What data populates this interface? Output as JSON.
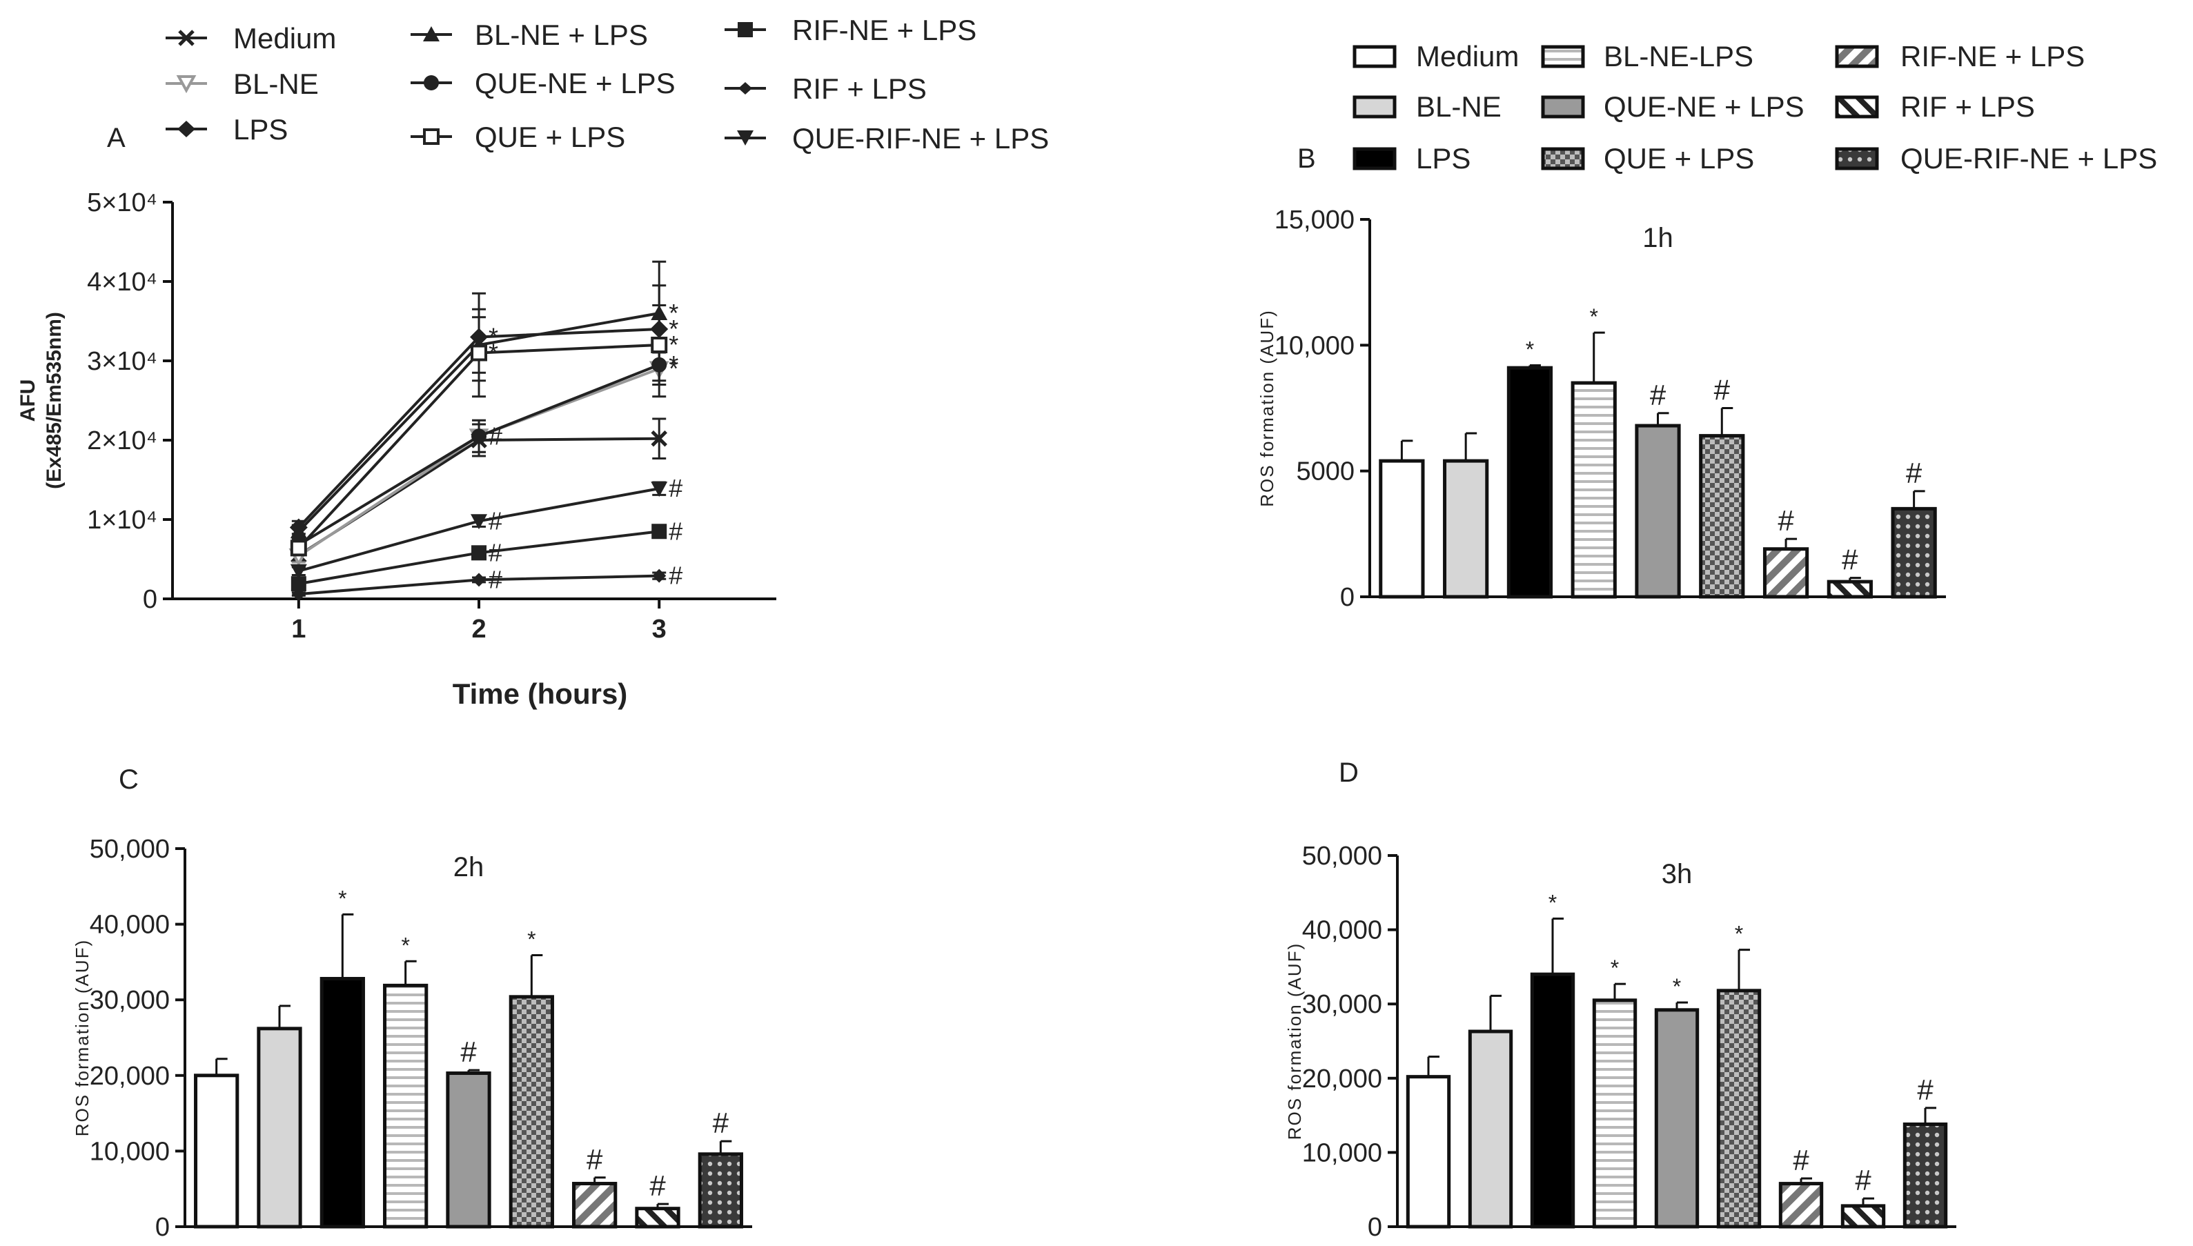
{
  "panels": {
    "a": "A",
    "b": "B",
    "c": "C",
    "d": "D"
  },
  "line_legend": {
    "medium": "Medium",
    "blne": "BL-NE",
    "lps": "LPS",
    "blne_lps": "BL-NE + LPS",
    "quene_lps": "QUE-NE + LPS",
    "que_lps": "QUE + LPS",
    "rifne_lps": "RIF-NE + LPS",
    "rif_lps": "RIF + LPS",
    "querifne_lps": "QUE-RIF-NE + LPS"
  },
  "bar_legend": {
    "medium": "Medium",
    "blne": "BL-NE",
    "lps": "LPS",
    "blnelps": "BL-NE-LPS",
    "quene_lps": "QUE-NE + LPS",
    "que_lps": "QUE + LPS",
    "rifne_lps": "RIF-NE + LPS",
    "rif_lps": "RIF + LPS",
    "querifne_lps": "QUE-RIF-NE + LPS"
  },
  "chart_data": [
    {
      "type": "line",
      "panel": "A",
      "title": "",
      "xlabel": "Time (hours)",
      "ylabel_line1": "AFU",
      "ylabel_line2": "(Ex485/Em535nm)",
      "x": [
        1,
        2,
        3
      ],
      "xlim": [
        0.3,
        3.65
      ],
      "ylim": [
        0,
        50000
      ],
      "x_ticks": [
        "1",
        "2",
        "3"
      ],
      "y_ticks": [
        {
          "v": 0,
          "label": "0"
        },
        {
          "v": 10000,
          "label": "1×10⁴"
        },
        {
          "v": 20000,
          "label": "2×10⁴"
        },
        {
          "v": 30000,
          "label": "3×10⁴"
        },
        {
          "v": 40000,
          "label": "4×10⁴"
        },
        {
          "v": 50000,
          "label": "5×10⁴"
        }
      ],
      "series": [
        {
          "name": "Medium",
          "marker": "x",
          "values": [
            5500,
            20000,
            20200
          ],
          "err": [
            700,
            2000,
            2500
          ],
          "marks": [
            "",
            "",
            ""
          ]
        },
        {
          "name": "BL-NE",
          "marker": "tri-down-open",
          "values": [
            5400,
            20500,
            29000
          ],
          "err": [
            800,
            2000,
            2000
          ],
          "marks": [
            "",
            "#",
            "*"
          ]
        },
        {
          "name": "LPS",
          "marker": "diamond",
          "values": [
            9000,
            33000,
            34000
          ],
          "err": [
            800,
            5500,
            8500
          ],
          "marks": [
            "",
            "*",
            "*"
          ]
        },
        {
          "name": "BL-NE + LPS",
          "marker": "tri-up",
          "values": [
            8500,
            32000,
            36000
          ],
          "err": [
            800,
            3500,
            3500
          ],
          "marks": [
            "",
            "",
            "*"
          ]
        },
        {
          "name": "QUE-NE + LPS",
          "marker": "circle",
          "values": [
            6800,
            20500,
            29500
          ],
          "err": [
            700,
            2000,
            2000
          ],
          "marks": [
            "",
            "",
            "*"
          ]
        },
        {
          "name": "QUE + LPS",
          "marker": "square-open",
          "values": [
            6400,
            31000,
            32000
          ],
          "err": [
            700,
            5500,
            5000
          ],
          "marks": [
            "",
            "*",
            "*"
          ]
        },
        {
          "name": "RIF-NE + LPS",
          "marker": "square",
          "values": [
            1900,
            5800,
            8500
          ],
          "err": [
            400,
            600,
            600
          ],
          "marks": [
            "",
            "#",
            "#"
          ]
        },
        {
          "name": "RIF + LPS",
          "marker": "diamond-small",
          "values": [
            600,
            2400,
            2900
          ],
          "err": [
            200,
            300,
            400
          ],
          "marks": [
            "",
            "#",
            "#"
          ]
        },
        {
          "name": "QUE-RIF-NE + LPS",
          "marker": "tri-down",
          "values": [
            3500,
            9800,
            13900
          ],
          "err": [
            500,
            700,
            800
          ],
          "marks": [
            "",
            "#",
            "#"
          ]
        }
      ]
    },
    {
      "type": "bar",
      "panel": "B",
      "title": "1h",
      "ylabel": "ROS formation (AUF)",
      "categories": [
        "Medium",
        "BL-NE",
        "LPS",
        "BL-NE-LPS",
        "QUE-NE + LPS",
        "QUE + LPS",
        "RIF-NE + LPS",
        "RIF + LPS",
        "QUE-RIF-NE + LPS"
      ],
      "values": [
        5400,
        5400,
        9100,
        8500,
        6800,
        6400,
        1900,
        600,
        3500
      ],
      "err": [
        800,
        1100,
        100,
        2000,
        500,
        1100,
        400,
        150,
        700
      ],
      "marks": [
        "",
        "",
        "*",
        "*",
        "#",
        "#",
        "#",
        "#",
        "#"
      ],
      "ylim": [
        0,
        15000
      ],
      "y_ticks": [
        {
          "v": 0,
          "label": "0"
        },
        {
          "v": 5000,
          "label": "5000"
        },
        {
          "v": 10000,
          "label": "10,000"
        },
        {
          "v": 15000,
          "label": "15,000"
        }
      ]
    },
    {
      "type": "bar",
      "panel": "C",
      "title": "2h",
      "ylabel": "ROS formation (AUF)",
      "categories": [
        "Medium",
        "BL-NE",
        "LPS",
        "BL-NE-LPS",
        "QUE-NE + LPS",
        "QUE + LPS",
        "RIF-NE + LPS",
        "RIF + LPS",
        "QUE-RIF-NE + LPS"
      ],
      "values": [
        20000,
        26200,
        32800,
        31900,
        20300,
        30400,
        5700,
        2400,
        9600
      ],
      "err": [
        2200,
        3000,
        8500,
        3200,
        400,
        5500,
        800,
        600,
        1700
      ],
      "marks": [
        "",
        "",
        "*",
        "*",
        "#",
        "*",
        "#",
        "#",
        "#"
      ],
      "ylim": [
        0,
        50000
      ],
      "y_ticks": [
        {
          "v": 0,
          "label": "0"
        },
        {
          "v": 10000,
          "label": "10,000"
        },
        {
          "v": 20000,
          "label": "20,000"
        },
        {
          "v": 30000,
          "label": "30,000"
        },
        {
          "v": 40000,
          "label": "40,000"
        },
        {
          "v": 50000,
          "label": "50,000"
        }
      ]
    },
    {
      "type": "bar",
      "panel": "D",
      "title": "3h",
      "ylabel": "ROS formation (AUF)",
      "categories": [
        "Medium",
        "BL-NE",
        "LPS",
        "BL-NE-LPS",
        "QUE-NE + LPS",
        "QUE + LPS",
        "RIF-NE + LPS",
        "RIF + LPS",
        "QUE-RIF-NE + LPS"
      ],
      "values": [
        20200,
        26300,
        34000,
        30500,
        29200,
        31800,
        5800,
        2800,
        13800
      ],
      "err": [
        2700,
        4800,
        7500,
        2200,
        1000,
        5500,
        700,
        1000,
        2200
      ],
      "marks": [
        "",
        "",
        "*",
        "*",
        "*",
        "*",
        "#",
        "#",
        "#"
      ],
      "ylim": [
        0,
        50000
      ],
      "y_ticks": [
        {
          "v": 0,
          "label": "0"
        },
        {
          "v": 10000,
          "label": "10,000"
        },
        {
          "v": 20000,
          "label": "20,000"
        },
        {
          "v": 30000,
          "label": "30,000"
        },
        {
          "v": 40000,
          "label": "40,000"
        },
        {
          "v": 50000,
          "label": "50,000"
        }
      ]
    }
  ]
}
